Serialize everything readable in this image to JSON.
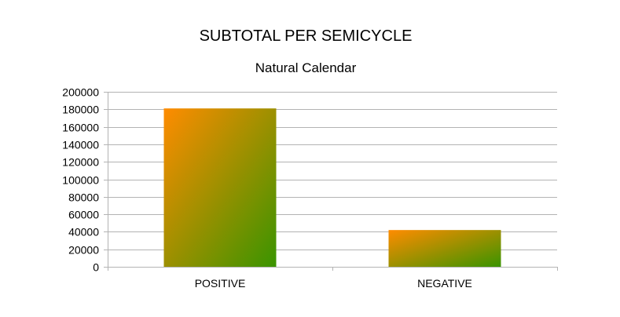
{
  "chart_data": {
    "type": "bar",
    "title": "SUBTOTAL PER SEMICYCLE",
    "subtitle": "Natural Calendar",
    "categories": [
      "POSITIVE",
      "NEGATIVE"
    ],
    "values": [
      181000,
      42000
    ],
    "ylim": [
      0,
      200000
    ],
    "yticks": [
      0,
      20000,
      40000,
      60000,
      80000,
      100000,
      120000,
      140000,
      160000,
      180000,
      200000
    ],
    "ytick_labels": [
      "0",
      "20000",
      "40000",
      "60000",
      "80000",
      "100000",
      "120000",
      "140000",
      "160000",
      "180000",
      "200000"
    ],
    "grid": true,
    "legend": "none",
    "colors": {
      "gradient_start": "#ff8c00",
      "gradient_end": "#3a9400",
      "grid": "#b3b3b3",
      "axis": "#b3b3b3"
    }
  }
}
